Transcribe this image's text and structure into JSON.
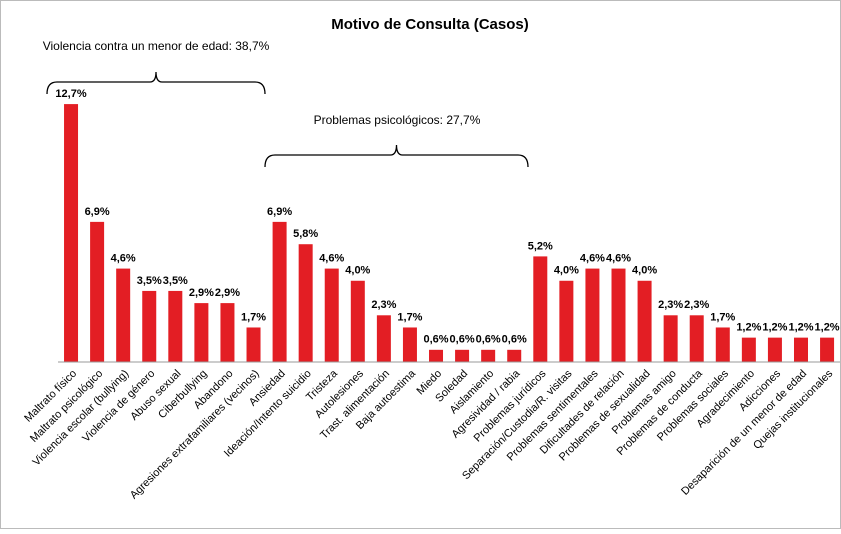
{
  "chart_data": {
    "type": "bar",
    "title": "Motivo de Consulta (Casos)",
    "categories": [
      "Maltrato físico",
      "Maltrato psicológico",
      "Violencia escolar (bullying)",
      "Violencia de género",
      "Abuso sexual",
      "Ciberbullying",
      "Abandono",
      "Agresiones extrafamiliares (vecinos)",
      "Ansiedad",
      "Ideación/Intento suicidio",
      "Tristeza",
      "Autolesiones",
      "Trast. alimentación",
      "Baja autoestima",
      "Miedo",
      "Soledad",
      "Aislamiento",
      "Agresividad / rabia",
      "Problemas jurídicos",
      "Separación/Custodia/R. visitas",
      "Problemas sentimentales",
      "Dificultades de relación",
      "Problemas de sexualidad",
      "Problemas amigo",
      "Problemas de conducta",
      "Problemas sociales",
      "Agradecimiento",
      "Adicciones",
      "Desaparición de un menor de edad",
      "Quejas institucionales"
    ],
    "values": [
      12.7,
      6.9,
      4.6,
      3.5,
      3.5,
      2.9,
      2.9,
      1.7,
      6.9,
      5.8,
      4.6,
      4.0,
      2.3,
      1.7,
      0.6,
      0.6,
      0.6,
      0.6,
      5.2,
      4.0,
      4.6,
      4.6,
      4.0,
      2.3,
      2.3,
      1.7,
      1.2,
      1.2,
      1.2,
      1.2
    ],
    "value_labels": [
      "12,7%",
      "6,9%",
      "4,6%",
      "3,5%",
      "3,5%",
      "2,9%",
      "2,9%",
      "1,7%",
      "6,9%",
      "5,8%",
      "4,6%",
      "4,0%",
      "2,3%",
      "1,7%",
      "0,6%",
      "0,6%",
      "0,6%",
      "0,6%",
      "5,2%",
      "4,0%",
      "4,6%",
      "4,6%",
      "4,0%",
      "2,3%",
      "2,3%",
      "1,7%",
      "1,2%",
      "1,2%",
      "1,2%",
      "1,2%"
    ],
    "color": "#e31e24",
    "ylim": [
      0,
      13
    ],
    "annotations": [
      "Violencia contra un menor de edad: 38,7%",
      "Problemas psicológicos: 27,7%"
    ]
  }
}
